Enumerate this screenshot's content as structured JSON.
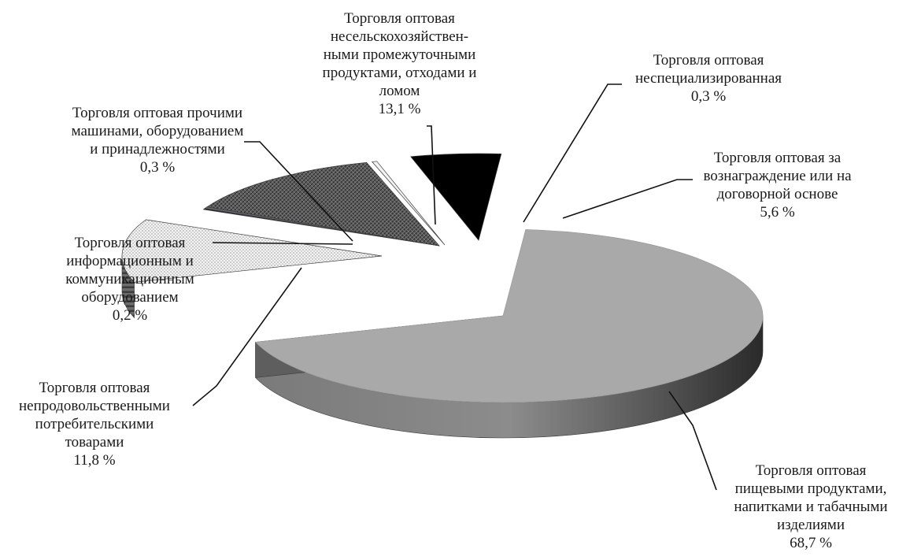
{
  "chart_data": {
    "type": "pie",
    "style": "3d-exploded",
    "title": "",
    "legend": "none",
    "slices": [
      {
        "label": "Торговля оптовая\nпищевыми продуктами,\nнапитками и табачными\nизделиями",
        "value_text": "68,7 %",
        "value": 68.7,
        "color": "#a9a9a9"
      },
      {
        "label": "Торговля оптовая\nнепродовольственными\nпотребительскими\nтоварами",
        "value_text": "11,8 %",
        "value": 11.8,
        "color": "#e6e6e6"
      },
      {
        "label": "Торговля оптовая\nинформационным и\nкоммуникационным\nоборудованием",
        "value_text": "0,2 %",
        "value": 0.2,
        "color": "#2e2447"
      },
      {
        "label": "Торговля оптовая прочими\nмашинами, оборудованием\nи принадлежностями",
        "value_text": "0,3 %",
        "value": 0.3,
        "color": "#6e6e6e"
      },
      {
        "label": "Торговля оптовая\nнесельскохозяйствен-\nными промежуточными\nпродуктами, отходами и\nломом",
        "value_text": "13,1 %",
        "value": 13.1,
        "color": "#5a5a5a"
      },
      {
        "label": "Торговля оптовая\nнеспециализированная",
        "value_text": "0,3 %",
        "value": 0.3,
        "color": "#f2f2f2"
      },
      {
        "label": "Торговля оптовая за\nвознаграждение или на\nдоговорной основе",
        "value_text": "5,6 %",
        "value": 5.6,
        "color": "#000000"
      }
    ]
  }
}
